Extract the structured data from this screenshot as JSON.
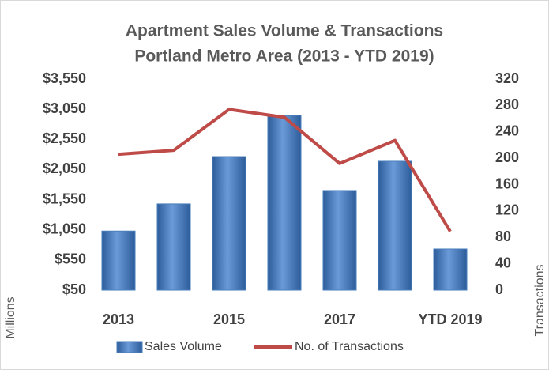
{
  "chart_data": {
    "type": "bar-line",
    "title": "Apartment Sales Volume & Transactions",
    "subtitle": "Portland Metro Area (2013 - YTD 2019)",
    "y_label": "Millions",
    "y2_label": "Transactions",
    "categories": [
      "2013",
      null,
      "2015",
      null,
      "2017",
      null,
      "YTD 2019"
    ],
    "series": [
      {
        "name": "Sales Volume",
        "type": "bar",
        "color": "#4a7ebb",
        "values": [
          1030,
          1480,
          2265,
          2947,
          1702,
          2187,
          732
        ]
      },
      {
        "name": "No. of Transactions",
        "type": "line",
        "axis": "y2",
        "color": "#be4b48",
        "values": [
          206,
          212,
          274,
          262,
          192,
          227,
          89
        ]
      }
    ],
    "ylim": [
      50,
      3550
    ],
    "yticks": [
      {
        "value": 50,
        "label": "$50"
      },
      {
        "value": 550,
        "label": "$550"
      },
      {
        "value": 1050,
        "label": "$1,050"
      },
      {
        "value": 1550,
        "label": "$1,550"
      },
      {
        "value": 2050,
        "label": "$2,050"
      },
      {
        "value": 2550,
        "label": "$2,550"
      },
      {
        "value": 3050,
        "label": "$3,050"
      },
      {
        "value": 3550,
        "label": "$3,550"
      }
    ],
    "y2lim": [
      0,
      320
    ],
    "y2ticks": [
      0,
      40,
      80,
      120,
      160,
      200,
      240,
      280,
      320
    ],
    "legend": "bottom"
  }
}
